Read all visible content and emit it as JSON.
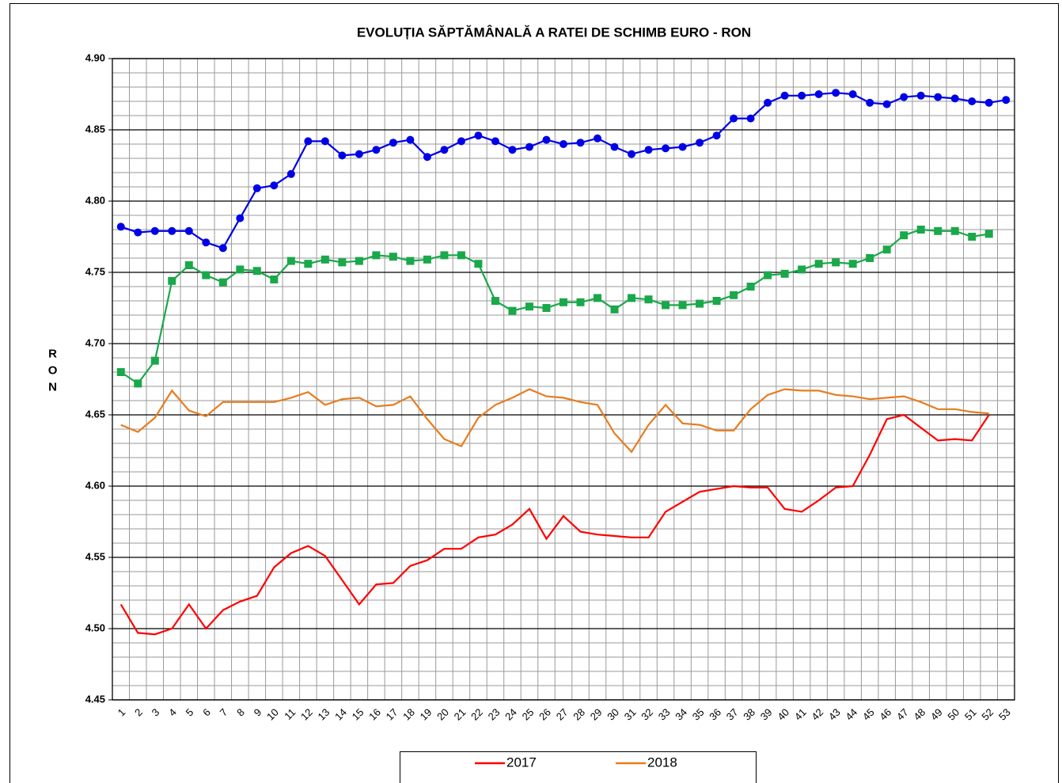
{
  "chart_data": {
    "type": "line",
    "title": "EVOLUȚIA SĂPTĂMÂNALĂ A RATEI DE SCHIMB EURO - RON",
    "y_label": "RON",
    "categories": [
      "1",
      "2",
      "3",
      "4",
      "5",
      "6",
      "7",
      "8",
      "9",
      "10",
      "11",
      "12",
      "13",
      "14",
      "15",
      "16",
      "17",
      "18",
      "19",
      "20",
      "21",
      "22",
      "23",
      "24",
      "25",
      "26",
      "27",
      "28",
      "29",
      "30",
      "31",
      "32",
      "33",
      "34",
      "35",
      "36",
      "37",
      "38",
      "39",
      "40",
      "41",
      "42",
      "43",
      "44",
      "45",
      "46",
      "47",
      "48",
      "49",
      "50",
      "51",
      "52",
      "53"
    ],
    "ylim": [
      4.45,
      4.9
    ],
    "yticks": [
      {
        "value": 4.45,
        "label": "4.45"
      },
      {
        "value": 4.5,
        "label": "4.50"
      },
      {
        "value": 4.55,
        "label": "4.55"
      },
      {
        "value": 4.6,
        "label": "4.60"
      },
      {
        "value": 4.65,
        "label": "4.65"
      },
      {
        "value": 4.7,
        "label": "4.70"
      },
      {
        "value": 4.75,
        "label": "4.75"
      },
      {
        "value": 4.8,
        "label": "4.80"
      },
      {
        "value": 4.85,
        "label": "4.85"
      },
      {
        "value": 4.9,
        "label": "4.90"
      }
    ],
    "grid": true,
    "series": [
      {
        "name": "2017",
        "color": "#ff0000",
        "values": [
          4.517,
          4.497,
          4.496,
          4.5,
          4.517,
          4.5,
          4.513,
          4.519,
          4.523,
          4.543,
          4.553,
          4.558,
          4.551,
          4.534,
          4.517,
          4.531,
          4.532,
          4.544,
          4.548,
          4.556,
          4.556,
          4.564,
          4.566,
          4.573,
          4.584,
          4.563,
          4.579,
          4.568,
          4.566,
          4.565,
          4.564,
          4.564,
          4.582,
          4.589,
          4.596,
          4.598,
          4.6,
          4.599,
          4.599,
          4.584,
          4.582,
          4.59,
          4.599,
          4.6,
          4.622,
          4.647,
          4.65,
          4.641,
          4.632,
          4.633,
          4.632,
          4.65,
          null
        ]
      },
      {
        "name": "2018",
        "color": "#e87c1e",
        "values": [
          4.643,
          4.638,
          4.648,
          4.667,
          4.653,
          4.649,
          4.659,
          4.659,
          4.659,
          4.659,
          4.662,
          4.666,
          4.657,
          4.661,
          4.662,
          4.656,
          4.657,
          4.663,
          4.647,
          4.633,
          4.628,
          4.648,
          4.657,
          4.662,
          4.668,
          4.663,
          4.662,
          4.659,
          4.657,
          4.637,
          4.624,
          4.643,
          4.657,
          4.644,
          4.643,
          4.639,
          4.639,
          4.654,
          4.664,
          4.668,
          4.667,
          4.667,
          4.664,
          4.663,
          4.661,
          4.662,
          4.663,
          4.659,
          4.654,
          4.654,
          4.652,
          4.651,
          null
        ]
      },
      {
        "color": "#1aa84a",
        "marker": "square",
        "values": [
          4.68,
          4.672,
          4.688,
          4.744,
          4.755,
          4.748,
          4.743,
          4.752,
          4.751,
          4.745,
          4.758,
          4.756,
          4.759,
          4.757,
          4.758,
          4.762,
          4.761,
          4.758,
          4.759,
          4.762,
          4.762,
          4.756,
          4.73,
          4.723,
          4.726,
          4.725,
          4.729,
          4.729,
          4.732,
          4.724,
          4.732,
          4.731,
          4.727,
          4.727,
          4.728,
          4.73,
          4.734,
          4.74,
          4.748,
          4.749,
          4.752,
          4.756,
          4.757,
          4.756,
          4.76,
          4.766,
          4.776,
          4.78,
          4.779,
          4.779,
          4.775,
          4.777,
          null
        ]
      },
      {
        "color": "#0000e6",
        "marker": "circle",
        "values": [
          4.782,
          4.778,
          4.779,
          4.779,
          4.779,
          4.771,
          4.767,
          4.788,
          4.809,
          4.811,
          4.819,
          4.842,
          4.842,
          4.832,
          4.833,
          4.836,
          4.841,
          4.843,
          4.831,
          4.836,
          4.842,
          4.846,
          4.842,
          4.836,
          4.838,
          4.843,
          4.84,
          4.841,
          4.844,
          4.838,
          4.833,
          4.836,
          4.837,
          4.838,
          4.841,
          4.846,
          4.858,
          4.858,
          4.869,
          4.874,
          4.874,
          4.875,
          4.876,
          4.875,
          4.869,
          4.868,
          4.873,
          4.874,
          4.873,
          4.872,
          4.87,
          4.869,
          4.871
        ]
      }
    ]
  }
}
